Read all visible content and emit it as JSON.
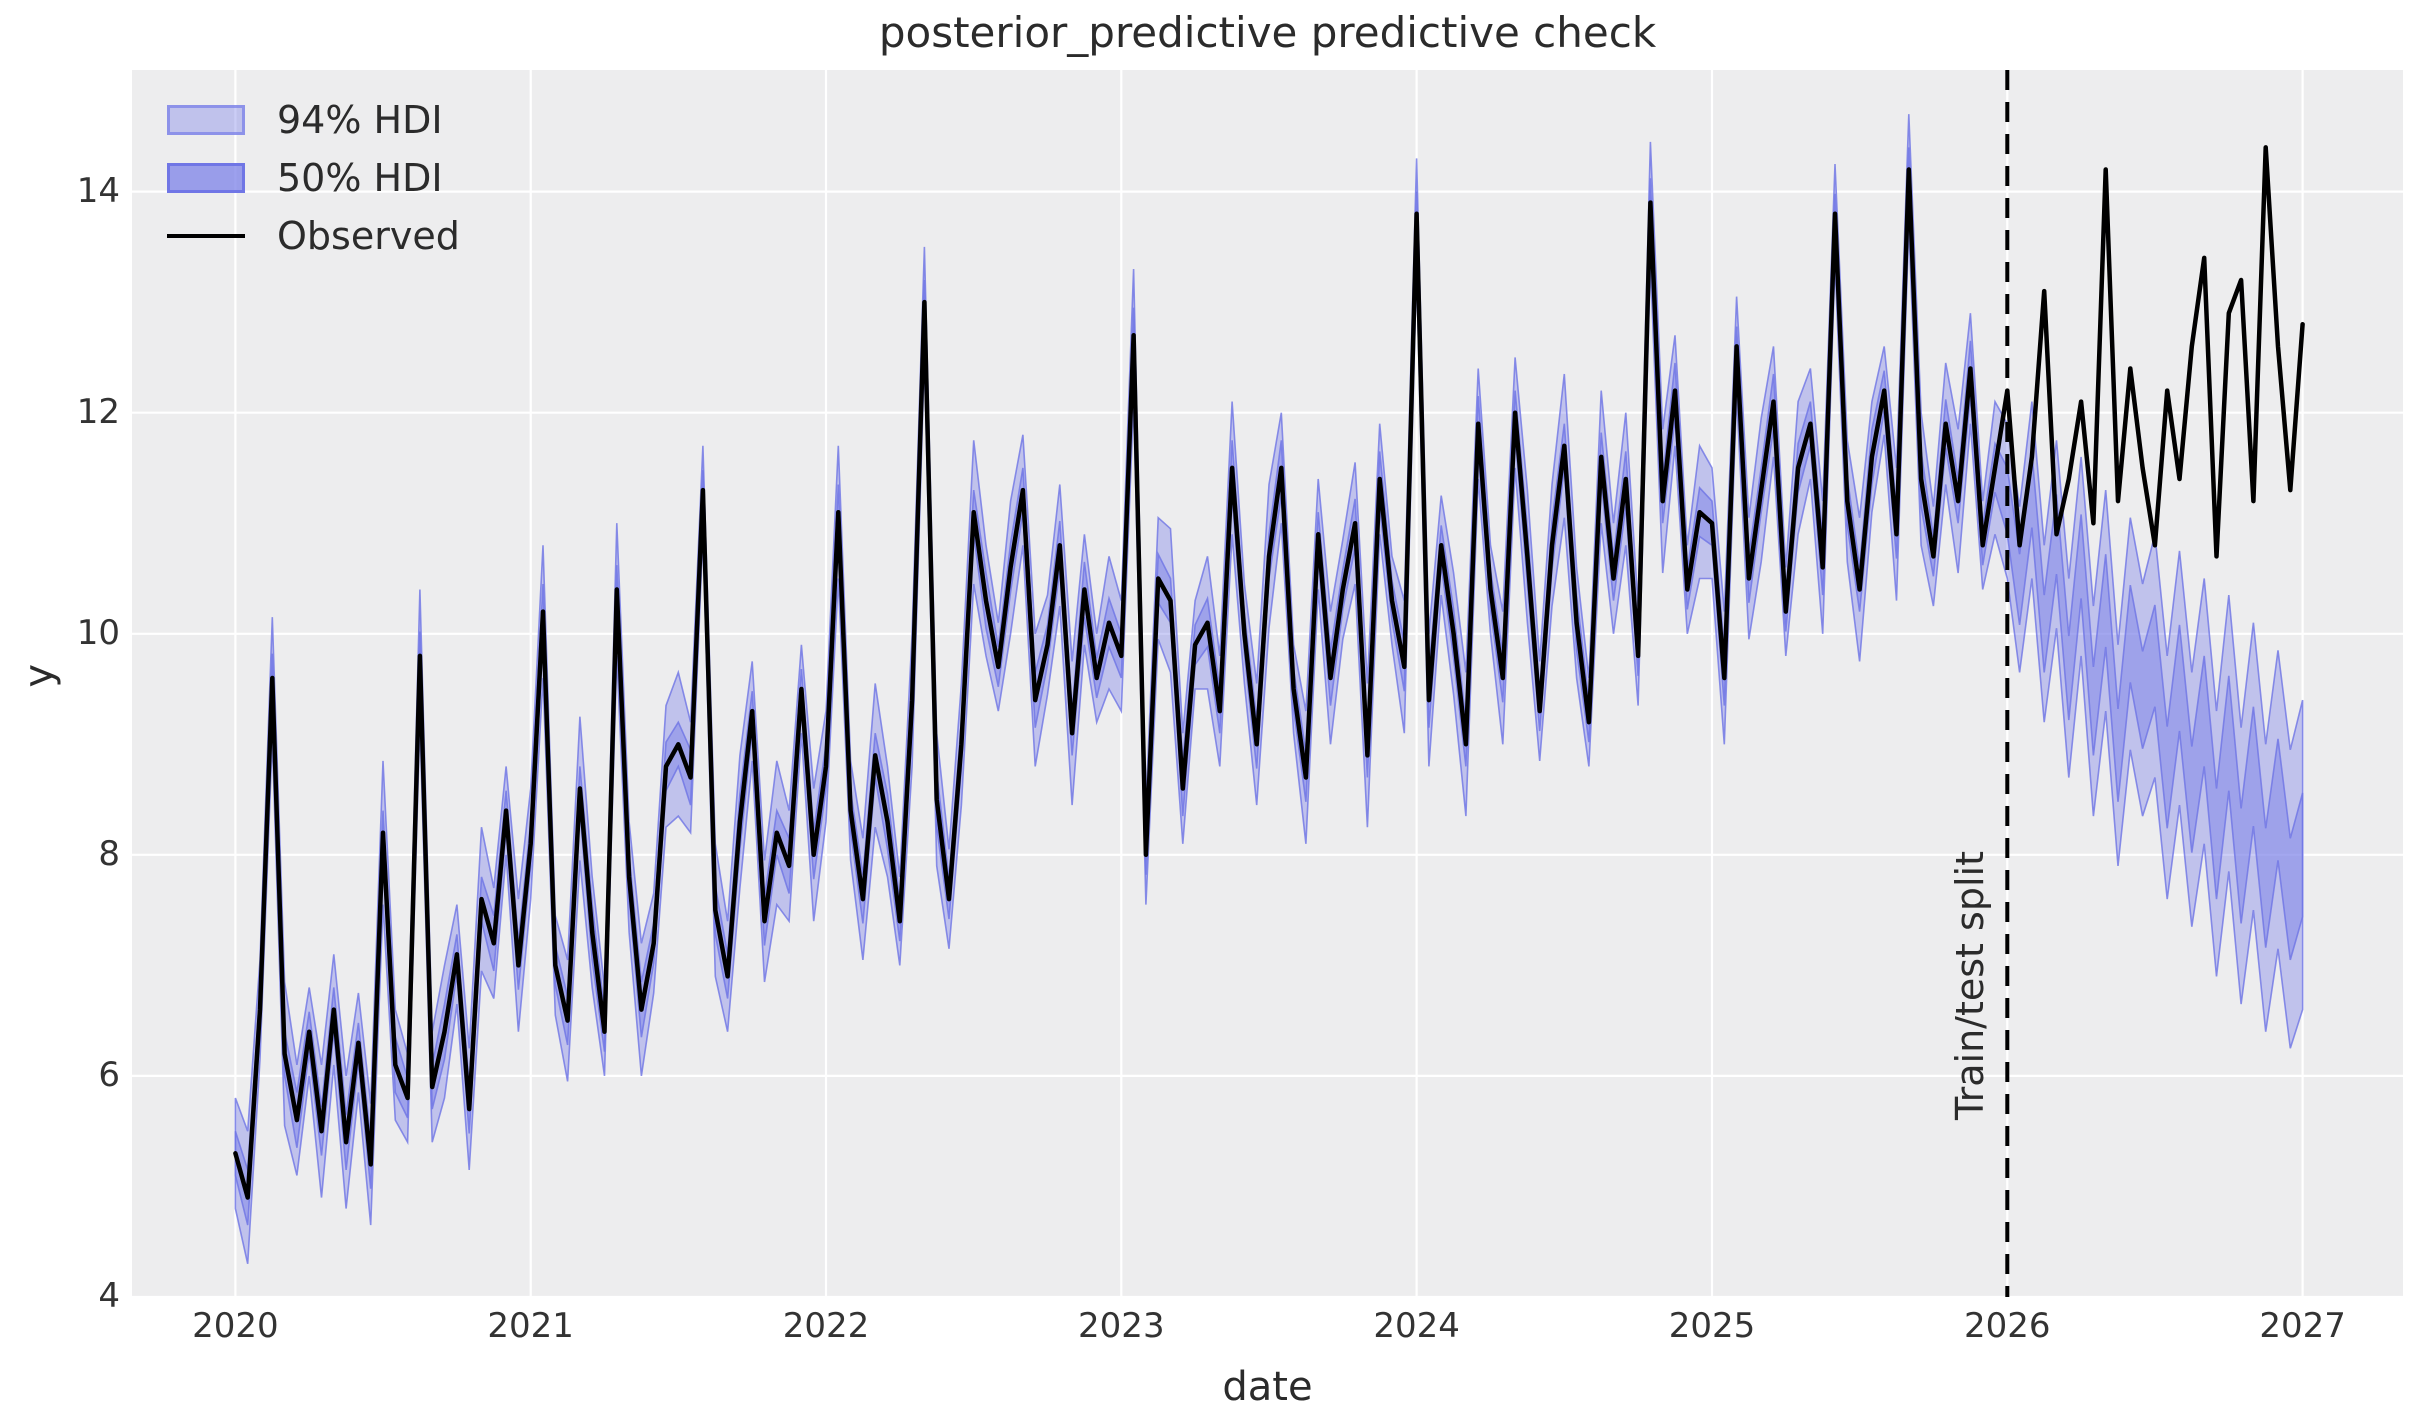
{
  "figure": {
    "title": "posterior_predictive predictive check"
  },
  "chart_data": {
    "type": "line",
    "title": "posterior_predictive predictive check",
    "xlabel": "date",
    "ylabel": "y",
    "xlim": [
      2019.65,
      2027.34
    ],
    "ylim": [
      4,
      15.1
    ],
    "xticks": [
      2020,
      2021,
      2022,
      2023,
      2024,
      2025,
      2026,
      2027
    ],
    "yticks": [
      4,
      6,
      8,
      10,
      12,
      14
    ],
    "grid": true,
    "legend": [
      "94% HDI",
      "50% HDI",
      "Observed"
    ],
    "legend_position": "upper left",
    "split_x": 2026.0,
    "split_label": "Train/test split",
    "x_start": 2020.0,
    "points_per_year": 24,
    "n_points": 169,
    "series": {
      "observed": [
        5.3,
        4.9,
        6.6,
        9.6,
        6.2,
        5.6,
        6.4,
        5.5,
        6.6,
        5.4,
        6.3,
        5.2,
        8.2,
        6.1,
        5.8,
        9.8,
        5.9,
        6.4,
        7.1,
        5.7,
        7.6,
        7.2,
        8.4,
        7.0,
        8.1,
        10.2,
        7.0,
        6.5,
        8.6,
        7.3,
        6.4,
        10.4,
        7.8,
        6.6,
        7.2,
        8.8,
        9.0,
        8.7,
        11.3,
        7.5,
        6.9,
        8.3,
        9.3,
        7.4,
        8.2,
        7.9,
        9.5,
        8.0,
        8.8,
        11.1,
        8.4,
        7.6,
        8.9,
        8.3,
        7.4,
        9.4,
        13.0,
        8.5,
        7.6,
        9.0,
        11.1,
        10.3,
        9.7,
        10.6,
        11.3,
        9.4,
        9.9,
        10.8,
        9.1,
        10.4,
        9.6,
        10.1,
        9.8,
        12.7,
        8.0,
        10.5,
        10.3,
        8.6,
        9.9,
        10.1,
        9.3,
        11.5,
        10.0,
        9.0,
        10.7,
        11.5,
        9.5,
        8.7,
        10.9,
        9.6,
        10.4,
        11.0,
        8.9,
        11.4,
        10.3,
        9.7,
        13.8,
        9.4,
        10.8,
        10.0,
        9.0,
        11.9,
        10.4,
        9.6,
        12.0,
        10.7,
        9.3,
        10.8,
        11.7,
        10.1,
        9.2,
        11.6,
        10.5,
        11.4,
        9.8,
        13.9,
        11.2,
        12.2,
        10.4,
        11.1,
        11.0,
        9.6,
        12.6,
        10.5,
        11.3,
        12.1,
        10.2,
        11.5,
        11.9,
        10.6,
        13.8,
        11.2,
        10.4,
        11.6,
        12.2,
        10.9,
        14.2,
        11.4,
        10.7,
        11.9,
        11.2,
        12.4,
        10.8,
        11.5,
        12.2,
        10.8,
        11.6,
        13.1,
        10.9,
        11.4,
        12.1,
        11.0,
        14.2,
        11.2,
        12.4,
        11.5,
        10.8,
        12.2,
        11.4,
        12.6,
        13.4,
        10.7,
        12.9,
        13.2,
        11.2,
        14.4,
        12.6,
        11.3,
        12.8
      ],
      "forecast_start_index": 144,
      "band_center_forecast": [
        11.2,
        10.4,
        11.3,
        10.0,
        10.9,
        9.6,
        10.7,
        9.3,
        10.3,
        8.9,
        10.0,
        9.4,
        9.8,
        8.7,
        9.6,
        8.5,
        9.3,
        8.1,
        9.1,
        7.9,
        8.8,
        7.7,
        8.5,
        7.6,
        8.0
      ],
      "hdi94_halfwidth": [
        0.5,
        0.6,
        0.45,
        0.55,
        0.65,
        0.5,
        0.4,
        0.6,
        0.5,
        0.6,
        0.45,
        0.55,
        0.65,
        0.5,
        0.4,
        0.6,
        0.5,
        0.6,
        0.45,
        0.55,
        0.65,
        0.5,
        0.4,
        0.6,
        0.5,
        0.6,
        0.45,
        0.55,
        0.65,
        0.5,
        0.4,
        0.6,
        0.5,
        0.6,
        0.45,
        0.55,
        0.65,
        0.5,
        0.4,
        0.6,
        0.5,
        0.6,
        0.45,
        0.55,
        0.65,
        0.5,
        0.4,
        0.6,
        0.5,
        0.6,
        0.45,
        0.55,
        0.65,
        0.5,
        0.4,
        0.6,
        0.5,
        0.6,
        0.45,
        0.55,
        0.65,
        0.5,
        0.4,
        0.6,
        0.5,
        0.6,
        0.45,
        0.55,
        0.65,
        0.5,
        0.4,
        0.6,
        0.5,
        0.6,
        0.45,
        0.55,
        0.65,
        0.5,
        0.4,
        0.6,
        0.5,
        0.6,
        0.45,
        0.55,
        0.65,
        0.5,
        0.4,
        0.6,
        0.5,
        0.6,
        0.45,
        0.55,
        0.65,
        0.5,
        0.4,
        0.6,
        0.5,
        0.6,
        0.45,
        0.55,
        0.65,
        0.5,
        0.4,
        0.6,
        0.5,
        0.6,
        0.45,
        0.55,
        0.65,
        0.5,
        0.4,
        0.6,
        0.5,
        0.6,
        0.45,
        0.55,
        0.65,
        0.5,
        0.4,
        0.6,
        0.5,
        0.6,
        0.45,
        0.55,
        0.65,
        0.5,
        0.4,
        0.6,
        0.5,
        0.6,
        0.45,
        0.55,
        0.65,
        0.5,
        0.4,
        0.6,
        0.5,
        0.6,
        0.45,
        0.55,
        0.65,
        0.5,
        0.4,
        0.6,
        0.7,
        0.75,
        0.8,
        0.8,
        0.85,
        0.9,
        0.9,
        0.95,
        1.0,
        1.0,
        1.05,
        1.05,
        1.1,
        1.1,
        1.15,
        1.15,
        1.2,
        1.2,
        1.25,
        1.25,
        1.3,
        1.3,
        1.35,
        1.35,
        1.4
      ],
      "hdi50_halfwidth": [
        0.2,
        0.25,
        0.18,
        0.22,
        0.2,
        0.25,
        0.18,
        0.22,
        0.2,
        0.25,
        0.18,
        0.22,
        0.2,
        0.25,
        0.18,
        0.22,
        0.2,
        0.25,
        0.18,
        0.22,
        0.2,
        0.25,
        0.18,
        0.22,
        0.2,
        0.25,
        0.18,
        0.22,
        0.2,
        0.25,
        0.18,
        0.22,
        0.2,
        0.25,
        0.18,
        0.22,
        0.2,
        0.25,
        0.18,
        0.22,
        0.2,
        0.25,
        0.18,
        0.22,
        0.2,
        0.25,
        0.18,
        0.22,
        0.2,
        0.25,
        0.18,
        0.22,
        0.2,
        0.25,
        0.18,
        0.22,
        0.2,
        0.25,
        0.18,
        0.22,
        0.2,
        0.25,
        0.18,
        0.22,
        0.2,
        0.25,
        0.18,
        0.22,
        0.2,
        0.25,
        0.18,
        0.22,
        0.2,
        0.25,
        0.18,
        0.22,
        0.2,
        0.25,
        0.18,
        0.22,
        0.2,
        0.25,
        0.18,
        0.22,
        0.2,
        0.25,
        0.18,
        0.22,
        0.2,
        0.25,
        0.18,
        0.22,
        0.2,
        0.25,
        0.18,
        0.22,
        0.2,
        0.25,
        0.18,
        0.22,
        0.2,
        0.25,
        0.18,
        0.22,
        0.2,
        0.25,
        0.18,
        0.22,
        0.2,
        0.25,
        0.18,
        0.22,
        0.2,
        0.25,
        0.18,
        0.22,
        0.2,
        0.25,
        0.18,
        0.22,
        0.2,
        0.25,
        0.18,
        0.22,
        0.2,
        0.25,
        0.18,
        0.22,
        0.2,
        0.25,
        0.18,
        0.22,
        0.2,
        0.25,
        0.18,
        0.22,
        0.2,
        0.25,
        0.18,
        0.22,
        0.2,
        0.25,
        0.18,
        0.22,
        0.3,
        0.32,
        0.34,
        0.35,
        0.36,
        0.38,
        0.38,
        0.4,
        0.42,
        0.42,
        0.44,
        0.44,
        0.46,
        0.46,
        0.48,
        0.48,
        0.5,
        0.5,
        0.52,
        0.52,
        0.54,
        0.54,
        0.55,
        0.55,
        0.56
      ]
    },
    "colors": {
      "hdi94_fill": "rgba(124,130,232,0.40)",
      "hdi50_fill": "rgba(124,130,232,0.50)",
      "band_edge": "rgba(110,116,229,0.8)",
      "observed_line": "#000000",
      "split_line": "#000000",
      "plot_background": "#ededee",
      "gridline": "#ffffff",
      "text": "#2b2b2b"
    }
  }
}
